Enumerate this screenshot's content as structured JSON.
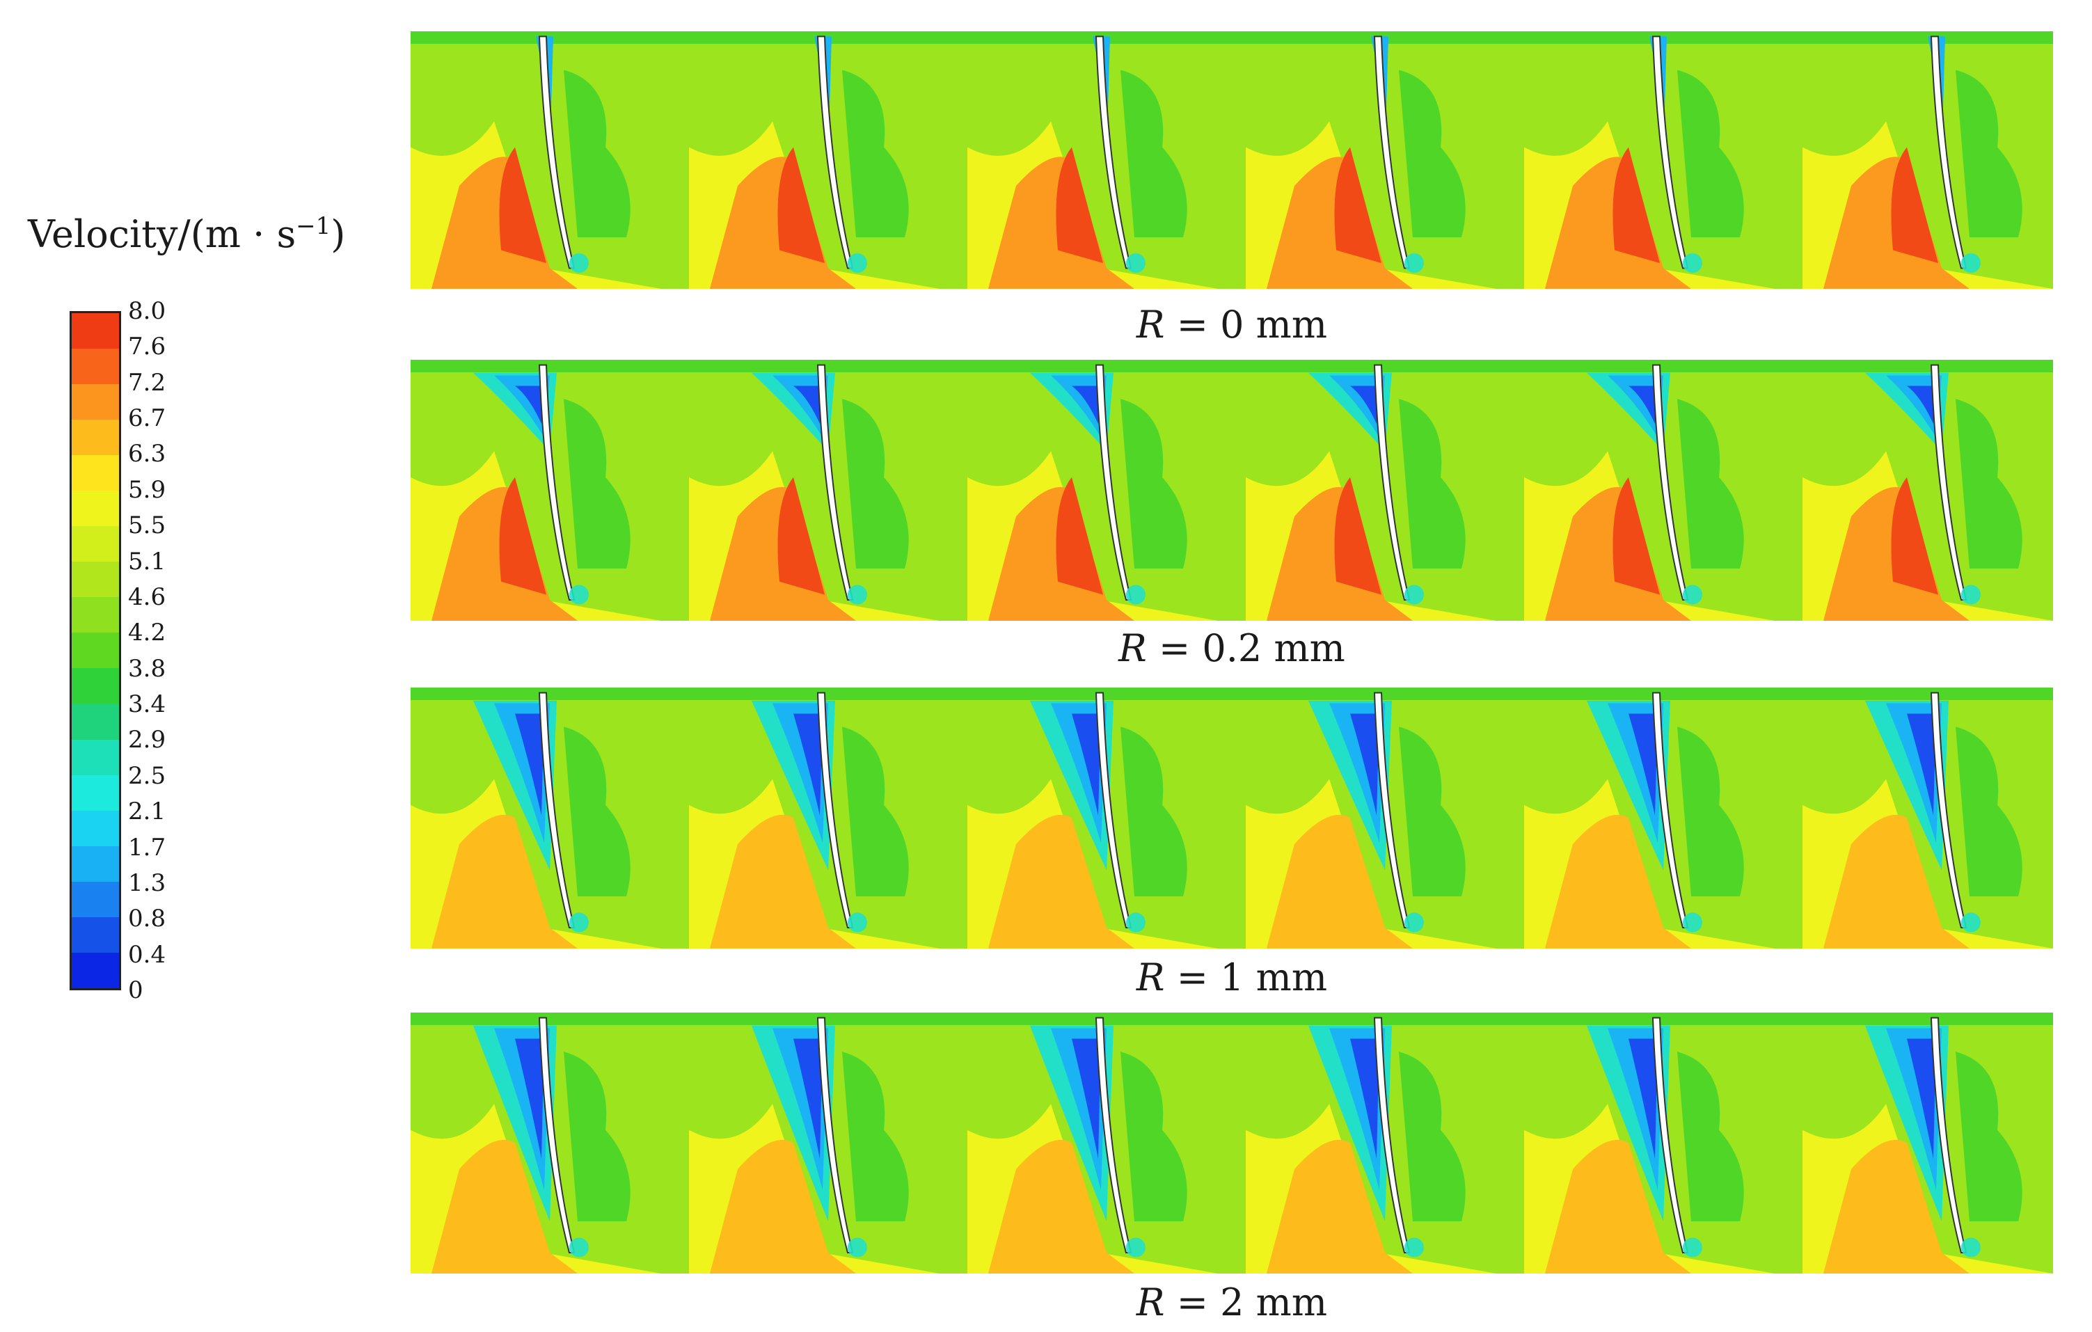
{
  "legend": {
    "title_prefix": "Velocity/(m · s",
    "title_exp": "−1",
    "title_suffix": ")",
    "ticks": [
      "8.0",
      "7.6",
      "7.2",
      "6.7",
      "6.3",
      "5.9",
      "5.5",
      "5.1",
      "4.6",
      "4.2",
      "3.8",
      "3.4",
      "2.9",
      "2.5",
      "2.1",
      "1.7",
      "1.3",
      "0.8",
      "0.4",
      "0"
    ],
    "colors": [
      "#f03c14",
      "#f7641a",
      "#fb951e",
      "#fdbb1c",
      "#fde41c",
      "#eef41c",
      "#d2ef1c",
      "#b2e61c",
      "#8fe01e",
      "#5fd822",
      "#2fd238",
      "#1fd27c",
      "#1ee0b8",
      "#1ceadc",
      "#1ad2f2",
      "#19b0f4",
      "#1982f0",
      "#1552e8",
      "#0b26e4"
    ]
  },
  "panels": [
    {
      "var": "R",
      "value": "= 0 mm"
    },
    {
      "var": "R",
      "value": "= 0.2 mm"
    },
    {
      "var": "R",
      "value": "= 1 mm"
    },
    {
      "var": "R",
      "value": "= 2 mm"
    }
  ]
}
